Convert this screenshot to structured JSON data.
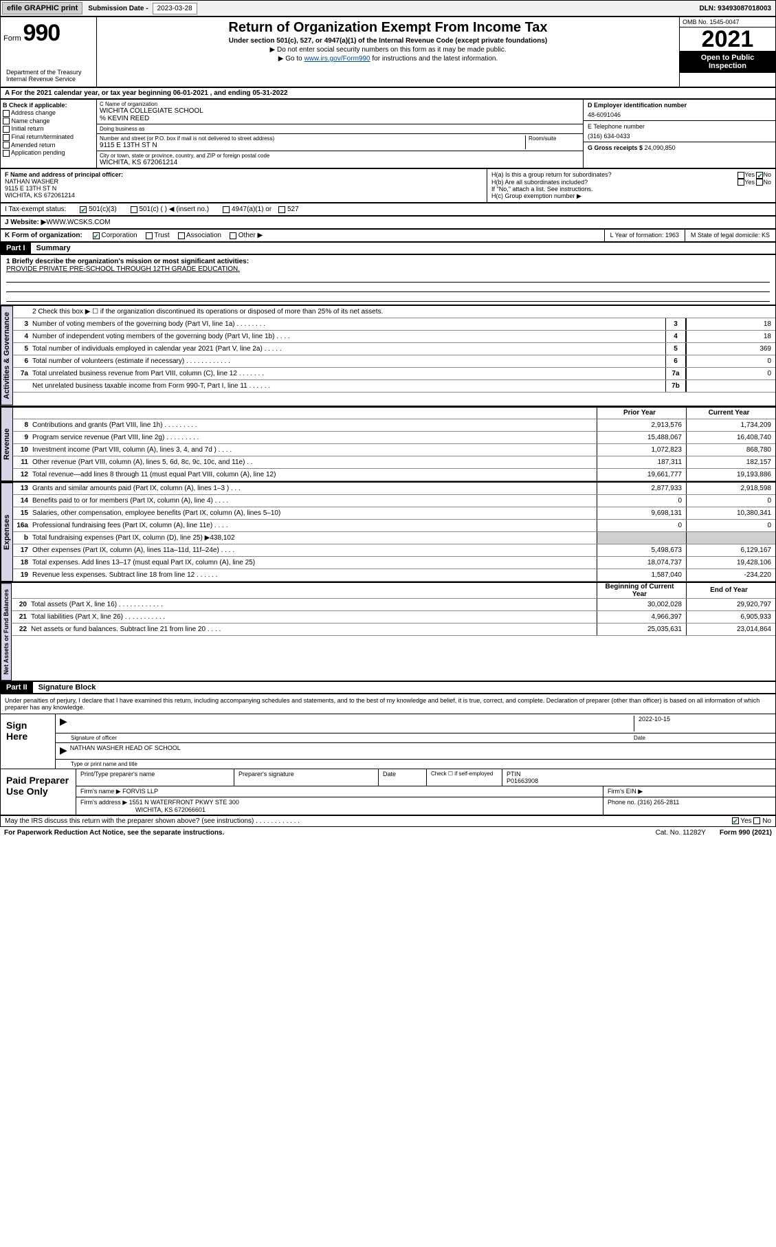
{
  "topbar": {
    "efile": "efile GRAPHIC print",
    "subdate_label": "Submission Date - ",
    "subdate": "2023-03-28",
    "dln": "DLN: 93493087018003"
  },
  "header": {
    "form_label": "Form",
    "form_num": "990",
    "title": "Return of Organization Exempt From Income Tax",
    "subtitle": "Under section 501(c), 527, or 4947(a)(1) of the Internal Revenue Code (except private foundations)",
    "note1": "▶ Do not enter social security numbers on this form as it may be made public.",
    "note2_pre": "▶ Go to ",
    "note2_link": "www.irs.gov/Form990",
    "note2_post": " for instructions and the latest information.",
    "omb": "OMB No. 1545-0047",
    "year": "2021",
    "inspect": "Open to Public Inspection",
    "dept": "Department of the Treasury\nInternal Revenue Service"
  },
  "rowA": "A For the 2021 calendar year, or tax year beginning 06-01-2021    , and ending 05-31-2022",
  "colB": {
    "label": "B Check if applicable:",
    "opts": [
      "Address change",
      "Name change",
      "Initial return",
      "Final return/terminated",
      "Amended return",
      "Application pending"
    ]
  },
  "colC": {
    "name_lbl": "C Name of organization",
    "name": "WICHITA COLLEGIATE SCHOOL",
    "care": "% KEVIN REED",
    "dba_lbl": "Doing business as",
    "dba": "",
    "street_lbl": "Number and street (or P.O. box if mail is not delivered to street address)",
    "room_lbl": "Room/suite",
    "street": "9115 E 13TH ST N",
    "city_lbl": "City or town, state or province, country, and ZIP or foreign postal code",
    "city": "WICHITA, KS  672061214"
  },
  "colD": {
    "ein_lbl": "D Employer identification number",
    "ein": "48-6091046",
    "tel_lbl": "E Telephone number",
    "tel": "(316) 634-0433",
    "gross_lbl": "G Gross receipts $ ",
    "gross": "24,090,850"
  },
  "rowF": {
    "lbl": "F Name and address of principal officer:",
    "name": "NATHAN WASHER",
    "addr1": "9115 E 13TH ST N",
    "addr2": "WICHITA, KS  672061214"
  },
  "rowH": {
    "ha": "H(a)  Is this a group return for subordinates?",
    "ha_ans": "No",
    "hb": "H(b)  Are all subordinates included?",
    "hb_note": "If \"No,\" attach a list. See instructions.",
    "hc": "H(c)  Group exemption number ▶"
  },
  "rowI": {
    "lbl": "I   Tax-exempt status:",
    "opt1": "501(c)(3)",
    "opt2": "501(c) (   ) ◀ (insert no.)",
    "opt3": "4947(a)(1) or",
    "opt4": "527"
  },
  "rowJ": {
    "lbl": "J   Website: ▶ ",
    "val": "WWW.WCSKS.COM"
  },
  "rowK": {
    "lbl": "K Form of organization:",
    "opts": [
      "Corporation",
      "Trust",
      "Association",
      "Other ▶"
    ],
    "year_lbl": "L Year of formation: ",
    "year": "1963",
    "state_lbl": "M State of legal domicile: ",
    "state": "KS"
  },
  "parts": {
    "p1": "Part I",
    "p1_title": "Summary",
    "p2": "Part II",
    "p2_title": "Signature Block"
  },
  "mission": {
    "lbl": "1   Briefly describe the organization's mission or most significant activities:",
    "text": "PROVIDE PRIVATE PRE-SCHOOL THROUGH 12TH GRADE EDUCATION."
  },
  "summary": {
    "sections": [
      "Activities & Governance",
      "Revenue",
      "Expenses",
      "Net Assets or Fund Balances"
    ],
    "line2": "2   Check this box ▶ ☐  if the organization discontinued its operations or disposed of more than 25% of its net assets.",
    "col_hdr_prior": "Prior Year",
    "col_hdr_current": "Current Year",
    "col_hdr_begin": "Beginning of Current Year",
    "col_hdr_end": "End of Year",
    "rows_gov": [
      {
        "n": "3",
        "d": "Number of voting members of the governing body (Part VI, line 1a)   .   .   .   .   .   .   .   .",
        "box": "3",
        "v": "18"
      },
      {
        "n": "4",
        "d": "Number of independent voting members of the governing body (Part VI, line 1b)   .   .   .   .",
        "box": "4",
        "v": "18"
      },
      {
        "n": "5",
        "d": "Total number of individuals employed in calendar year 2021 (Part V, line 2a)   .   .   .   .   .",
        "box": "5",
        "v": "369"
      },
      {
        "n": "6",
        "d": "Total number of volunteers (estimate if necessary)   .   .   .   .   .   .   .   .   .   .   .   .",
        "box": "6",
        "v": "0"
      },
      {
        "n": "7a",
        "d": "Total unrelated business revenue from Part VIII, column (C), line 12   .   .   .   .   .   .   .",
        "box": "7a",
        "v": "0"
      },
      {
        "n": "",
        "d": "Net unrelated business taxable income from Form 990-T, Part I, line 11   .   .   .   .   .   .",
        "box": "7b",
        "v": ""
      }
    ],
    "rows_rev": [
      {
        "n": "8",
        "d": "Contributions and grants (Part VIII, line 1h)   .   .   .   .   .   .   .   .   .",
        "p": "2,913,576",
        "c": "1,734,209"
      },
      {
        "n": "9",
        "d": "Program service revenue (Part VIII, line 2g)   .   .   .   .   .   .   .   .   .",
        "p": "15,488,067",
        "c": "16,408,740"
      },
      {
        "n": "10",
        "d": "Investment income (Part VIII, column (A), lines 3, 4, and 7d )   .   .   .   .",
        "p": "1,072,823",
        "c": "868,780"
      },
      {
        "n": "11",
        "d": "Other revenue (Part VIII, column (A), lines 5, 6d, 8c, 9c, 10c, and 11e)   .   .",
        "p": "187,311",
        "c": "182,157"
      },
      {
        "n": "12",
        "d": "Total revenue—add lines 8 through 11 (must equal Part VIII, column (A), line 12)",
        "p": "19,661,777",
        "c": "19,193,886"
      }
    ],
    "rows_exp": [
      {
        "n": "13",
        "d": "Grants and similar amounts paid (Part IX, column (A), lines 1–3 )   .   .   .",
        "p": "2,877,933",
        "c": "2,918,598"
      },
      {
        "n": "14",
        "d": "Benefits paid to or for members (Part IX, column (A), line 4)   .   .   .   .",
        "p": "0",
        "c": "0"
      },
      {
        "n": "15",
        "d": "Salaries, other compensation, employee benefits (Part IX, column (A), lines 5–10)",
        "p": "9,698,131",
        "c": "10,380,341"
      },
      {
        "n": "16a",
        "d": "Professional fundraising fees (Part IX, column (A), line 11e)   .   .   .   .",
        "p": "0",
        "c": "0"
      },
      {
        "n": "b",
        "d": "Total fundraising expenses (Part IX, column (D), line 25) ▶438,102",
        "p": "",
        "c": "",
        "shade": true
      },
      {
        "n": "17",
        "d": "Other expenses (Part IX, column (A), lines 11a–11d, 11f–24e)   .   .   .   .",
        "p": "5,498,673",
        "c": "6,129,167"
      },
      {
        "n": "18",
        "d": "Total expenses. Add lines 13–17 (must equal Part IX, column (A), line 25)",
        "p": "18,074,737",
        "c": "19,428,106"
      },
      {
        "n": "19",
        "d": "Revenue less expenses. Subtract line 18 from line 12   .   .   .   .   .   .",
        "p": "1,587,040",
        "c": "-234,220"
      }
    ],
    "rows_net": [
      {
        "n": "20",
        "d": "Total assets (Part X, line 16)   .   .   .   .   .   .   .   .   .   .   .   .",
        "p": "30,002,028",
        "c": "29,920,797"
      },
      {
        "n": "21",
        "d": "Total liabilities (Part X, line 26)   .   .   .   .   .   .   .   .   .   .   .",
        "p": "4,966,397",
        "c": "6,905,933"
      },
      {
        "n": "22",
        "d": "Net assets or fund balances. Subtract line 21 from line 20   .   .   .   .",
        "p": "25,035,631",
        "c": "23,014,864"
      }
    ]
  },
  "sig": {
    "perjury": "Under penalties of perjury, I declare that I have examined this return, including accompanying schedules and statements, and to the best of my knowledge and belief, it is true, correct, and complete. Declaration of preparer (other than officer) is based on all information of which preparer has any knowledge.",
    "sign_here": "Sign Here",
    "sig_officer": "Signature of officer",
    "date_lbl": "Date",
    "date": "2022-10-15",
    "name_title": "NATHAN WASHER  HEAD OF SCHOOL",
    "type_lbl": "Type or print name and title"
  },
  "paid": {
    "lbl": "Paid Preparer Use Only",
    "hdr": [
      "Print/Type preparer's name",
      "Preparer's signature",
      "Date",
      "Check ☐ if self-employed",
      "PTIN"
    ],
    "ptin": "P01663908",
    "firm_name_lbl": "Firm's name      ▶ ",
    "firm_name": "FORVIS LLP",
    "firm_ein_lbl": "Firm's EIN ▶",
    "firm_addr_lbl": "Firm's address ▶ ",
    "firm_addr1": "1551 N WATERFRONT PKWY STE 300",
    "firm_addr2": "WICHITA, KS  672066601",
    "phone_lbl": "Phone no. ",
    "phone": "(316) 265-2811"
  },
  "discuss": {
    "q": "May the IRS discuss this return with the preparer shown above? (see instructions)   .   .   .   .   .   .   .   .   .   .   .   .",
    "yes": "Yes",
    "no": "No"
  },
  "footer": {
    "pra": "For Paperwork Reduction Act Notice, see the separate instructions.",
    "cat": "Cat. No. 11282Y",
    "form": "Form 990 (2021)"
  }
}
